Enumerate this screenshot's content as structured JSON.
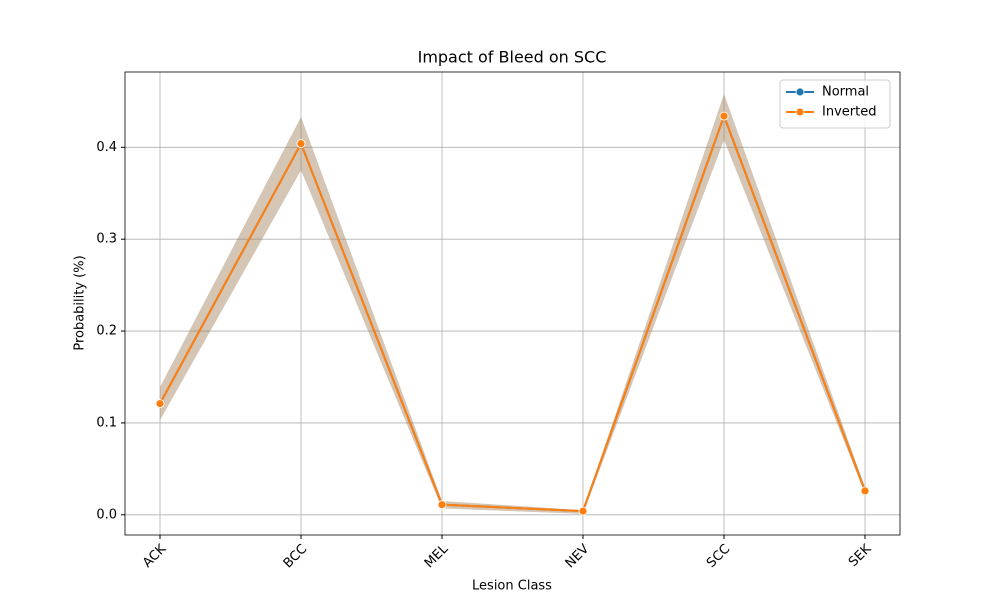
{
  "chart_data": {
    "type": "line",
    "title": "Impact of Bleed on SCC",
    "xlabel": "Lesion Class",
    "ylabel": "Probability (%)",
    "categories": [
      "ACK",
      "BCC",
      "MEL",
      "NEV",
      "SCC",
      "SEK"
    ],
    "series": [
      {
        "name": "Normal",
        "color": "#1f77b4",
        "values": [
          0.121,
          0.404,
          0.011,
          0.004,
          0.434,
          0.026
        ],
        "lower": [
          0.103,
          0.375,
          0.007,
          0.001,
          0.408,
          0.023
        ],
        "upper": [
          0.139,
          0.433,
          0.015,
          0.005,
          0.458,
          0.03
        ]
      },
      {
        "name": "Inverted",
        "color": "#ff7f0e",
        "values": [
          0.121,
          0.404,
          0.011,
          0.004,
          0.434,
          0.026
        ],
        "lower": [
          0.103,
          0.375,
          0.007,
          0.001,
          0.408,
          0.023
        ],
        "upper": [
          0.139,
          0.433,
          0.015,
          0.005,
          0.458,
          0.03
        ]
      }
    ],
    "ylim": [
      -0.022,
      0.482
    ],
    "yticks": [
      {
        "value": 0,
        "label": "0.0"
      },
      0.1,
      0.2,
      0.3,
      0.4
    ],
    "grid": true,
    "legend": "upper right"
  }
}
